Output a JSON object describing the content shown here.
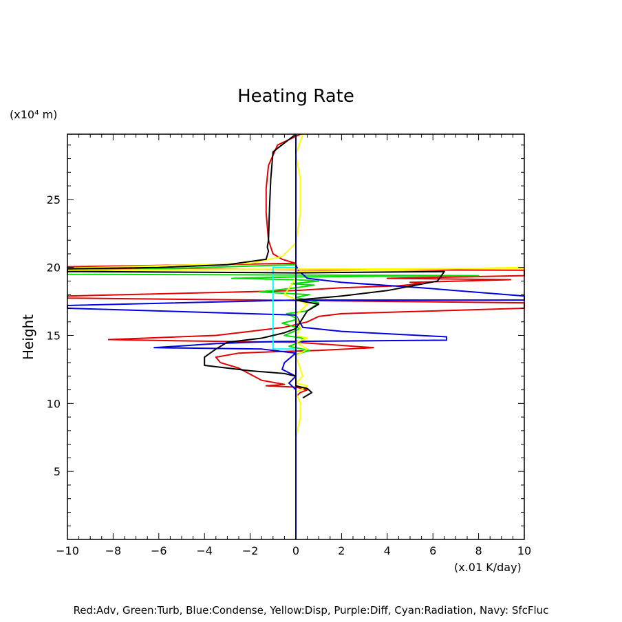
{
  "chart_data": {
    "type": "line",
    "title": "Heating Rate",
    "ylabel": "Height",
    "y_unit": "(x10⁴ m)",
    "x_unit": "(x.01 K/day)",
    "xlim": [
      -10,
      10
    ],
    "ylim": [
      0,
      29.8
    ],
    "x_ticks": [
      -10,
      -8,
      -6,
      -4,
      -2,
      0,
      2,
      4,
      6,
      8,
      10
    ],
    "y_ticks": [
      5,
      10,
      15,
      20,
      25
    ],
    "grid": false,
    "legend_text": "Red:Adv, Green:Turb, Blue:Condense, Yellow:Disp, Purple:Diff, Cyan:Radiation, Navy: SfcFluc",
    "series": [
      {
        "name": "Red:Adv",
        "color": "#e00000",
        "points": [
          [
            0.2,
            29.8
          ],
          [
            -0.8,
            29.0
          ],
          [
            -1.2,
            27.5
          ],
          [
            -1.3,
            25.8
          ],
          [
            -1.3,
            24.0
          ],
          [
            -1.2,
            22.0
          ],
          [
            -1.0,
            21.0
          ],
          [
            -0.6,
            20.6
          ],
          [
            0.0,
            20.3
          ],
          [
            -10.0,
            20.05
          ],
          [
            -10.0,
            19.9
          ],
          [
            10.0,
            19.8
          ],
          [
            10.0,
            19.4
          ],
          [
            4.0,
            19.2
          ],
          [
            9.4,
            19.1
          ],
          [
            5.0,
            18.9
          ],
          [
            5.5,
            18.8
          ],
          [
            4.5,
            18.65
          ],
          [
            2.0,
            18.5
          ],
          [
            0.0,
            18.3
          ],
          [
            -10.0,
            17.9
          ],
          [
            -10.0,
            17.75
          ],
          [
            10.0,
            17.4
          ],
          [
            10.0,
            17.0
          ],
          [
            2.0,
            16.6
          ],
          [
            1.0,
            16.4
          ],
          [
            0.5,
            16.0
          ],
          [
            -0.5,
            15.6
          ],
          [
            -2.0,
            15.3
          ],
          [
            -3.5,
            15.0
          ],
          [
            -8.2,
            14.7
          ],
          [
            -5.0,
            14.6
          ],
          [
            0.0,
            14.5
          ],
          [
            3.4,
            14.1
          ],
          [
            1.0,
            13.9
          ],
          [
            -1.0,
            13.8
          ],
          [
            -2.5,
            13.7
          ],
          [
            -3.5,
            13.4
          ],
          [
            -3.3,
            13.0
          ],
          [
            -2.5,
            12.6
          ],
          [
            -1.5,
            11.7
          ],
          [
            -0.5,
            11.4
          ],
          [
            -1.3,
            11.3
          ],
          [
            0.0,
            11.2
          ],
          [
            0.5,
            11.0
          ],
          [
            0.2,
            10.8
          ],
          [
            0.0,
            10.5
          ]
        ]
      },
      {
        "name": "Green:Turb",
        "color": "#00e000",
        "points": [
          [
            0.0,
            20.2
          ],
          [
            -10.0,
            19.7
          ],
          [
            -10.0,
            19.5
          ],
          [
            8.0,
            19.4
          ],
          [
            4.0,
            19.35
          ],
          [
            0.0,
            19.3
          ],
          [
            -2.8,
            19.2
          ],
          [
            0.0,
            19.1
          ],
          [
            1.0,
            19.0
          ],
          [
            -0.2,
            18.8
          ],
          [
            0.8,
            18.7
          ],
          [
            0.0,
            18.5
          ],
          [
            -1.6,
            18.2
          ],
          [
            0.6,
            18.0
          ],
          [
            0.0,
            17.8
          ],
          [
            1.0,
            17.4
          ],
          [
            0.5,
            16.8
          ],
          [
            -0.4,
            16.6
          ],
          [
            0.1,
            16.2
          ],
          [
            -0.6,
            15.9
          ],
          [
            0.2,
            15.5
          ],
          [
            -0.5,
            15.0
          ],
          [
            0.3,
            14.8
          ],
          [
            0.2,
            14.5
          ],
          [
            -0.3,
            14.2
          ],
          [
            0.6,
            13.9
          ],
          [
            0.0,
            13.6
          ]
        ]
      },
      {
        "name": "Blue:Condense",
        "color": "#0000e0",
        "points": [
          [
            0.0,
            20.2
          ],
          [
            0.1,
            19.8
          ],
          [
            0.5,
            19.2
          ],
          [
            2.0,
            18.9
          ],
          [
            5.5,
            18.5
          ],
          [
            10.0,
            17.9
          ],
          [
            10.0,
            17.6
          ],
          [
            0.0,
            17.6
          ],
          [
            -10.0,
            17.2
          ],
          [
            -10.0,
            17.0
          ],
          [
            0.0,
            16.5
          ],
          [
            0.3,
            15.6
          ],
          [
            2.0,
            15.3
          ],
          [
            6.6,
            14.9
          ],
          [
            6.6,
            14.65
          ],
          [
            -1.0,
            14.55
          ],
          [
            -3.5,
            14.4
          ],
          [
            -6.2,
            14.1
          ],
          [
            -1.5,
            14.0
          ],
          [
            0.0,
            13.7
          ],
          [
            -0.5,
            13.0
          ],
          [
            -0.6,
            12.5
          ],
          [
            0.0,
            12.0
          ],
          [
            -0.3,
            11.5
          ],
          [
            0.0,
            11.0
          ]
        ]
      },
      {
        "name": "Yellow:Disp",
        "color": "#ffff00",
        "points": [
          [
            0.3,
            29.8
          ],
          [
            0.0,
            28.3
          ],
          [
            0.2,
            26.5
          ],
          [
            0.2,
            24.0
          ],
          [
            0.0,
            21.8
          ],
          [
            -0.6,
            20.8
          ],
          [
            -2.0,
            20.3
          ],
          [
            -10.0,
            19.95
          ],
          [
            -10.0,
            19.8
          ],
          [
            10.0,
            19.95
          ],
          [
            10.0,
            20.0
          ],
          [
            0.0,
            19.7
          ],
          [
            0.0,
            19.2
          ],
          [
            -0.5,
            18.0
          ],
          [
            0.5,
            17.3
          ],
          [
            0.0,
            16.5
          ],
          [
            0.2,
            15.5
          ],
          [
            0.0,
            15.0
          ],
          [
            0.5,
            14.8
          ],
          [
            0.0,
            14.5
          ],
          [
            0.5,
            14.0
          ],
          [
            0.0,
            13.5
          ],
          [
            0.3,
            12.0
          ],
          [
            0.0,
            11.5
          ],
          [
            0.5,
            11.3
          ],
          [
            0.0,
            10.8
          ],
          [
            0.2,
            10.0
          ],
          [
            0.2,
            9.0
          ],
          [
            0.0,
            7.5
          ]
        ]
      },
      {
        "name": "Cyan:Radiation",
        "color": "#00ffff",
        "points": [
          [
            0.0,
            20.0
          ],
          [
            -1.0,
            20.0
          ],
          [
            -1.0,
            14.0
          ],
          [
            0.0,
            14.0
          ]
        ]
      },
      {
        "name": "Navy: SfcFluc",
        "color": "#000080",
        "points": [
          [
            0.0,
            0.0
          ],
          [
            0.0,
            29.8
          ]
        ]
      },
      {
        "name": "",
        "color": "#000000",
        "points": [
          [
            0.0,
            29.8
          ],
          [
            -1.0,
            28.5
          ],
          [
            -1.1,
            26.5
          ],
          [
            -1.15,
            24.5
          ],
          [
            -1.2,
            22.0
          ],
          [
            -1.25,
            21.5
          ],
          [
            -1.2,
            21.2
          ],
          [
            -1.3,
            20.6
          ],
          [
            -3.0,
            20.2
          ],
          [
            -6.0,
            20.0
          ],
          [
            -10.0,
            19.9
          ],
          [
            -10.0,
            19.7
          ],
          [
            0.0,
            19.6
          ],
          [
            6.5,
            19.7
          ],
          [
            6.2,
            19.0
          ],
          [
            4.0,
            18.3
          ],
          [
            2.0,
            17.9
          ],
          [
            0.0,
            17.6
          ],
          [
            1.0,
            17.3
          ],
          [
            0.5,
            16.8
          ],
          [
            0.2,
            16.0
          ],
          [
            0.0,
            15.5
          ],
          [
            -0.5,
            15.2
          ],
          [
            -1.5,
            14.8
          ],
          [
            -3.0,
            14.5
          ],
          [
            -3.5,
            14.0
          ],
          [
            -4.0,
            13.4
          ],
          [
            -4.0,
            12.8
          ],
          [
            -2.0,
            12.4
          ],
          [
            -0.5,
            12.2
          ],
          [
            0.0,
            12.0
          ],
          [
            0.0,
            11.3
          ],
          [
            0.5,
            11.1
          ],
          [
            0.7,
            10.8
          ],
          [
            0.3,
            10.4
          ]
        ]
      }
    ]
  }
}
